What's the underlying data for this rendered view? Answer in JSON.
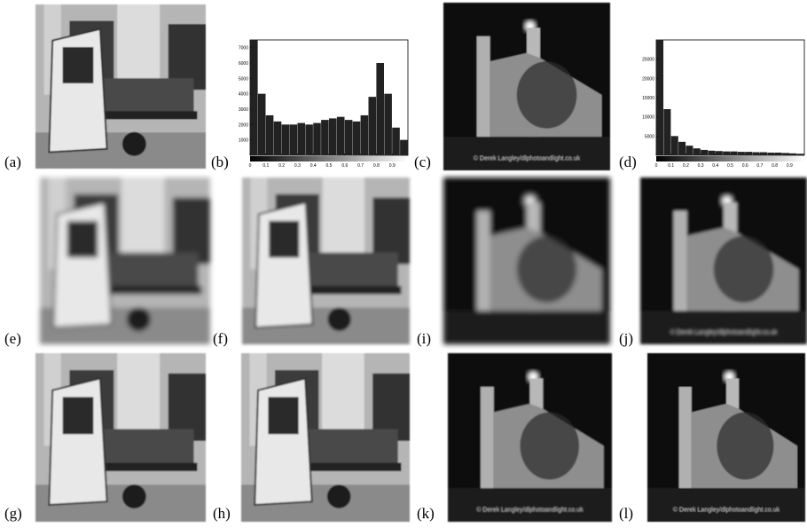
{
  "panels": [
    {
      "label": "(a)"
    },
    {
      "label": "(b)"
    },
    {
      "label": "(c)"
    },
    {
      "label": "(d)"
    },
    {
      "label": "(e)"
    },
    {
      "label": "(f)"
    },
    {
      "label": "(i)"
    },
    {
      "label": "(j)"
    },
    {
      "label": "(g)"
    },
    {
      "label": "(h)"
    },
    {
      "label": "(k)"
    },
    {
      "label": "(l)"
    }
  ],
  "watermark": "© Derek Langley/dlphotoandlight.co.uk",
  "chart_data": [
    {
      "type": "histogram",
      "bins": [
        0,
        0.05,
        0.1,
        0.15,
        0.2,
        0.25,
        0.3,
        0.35,
        0.4,
        0.45,
        0.5,
        0.55,
        0.6,
        0.65,
        0.7,
        0.75,
        0.8,
        0.85,
        0.9,
        0.95,
        1
      ],
      "counts": [
        7500,
        4000,
        2600,
        2200,
        2000,
        2000,
        2100,
        2000,
        2100,
        2300,
        2400,
        2500,
        2300,
        2200,
        2600,
        3800,
        6000,
        4000,
        1800,
        1000
      ],
      "color": "#222222",
      "xlim": [
        0,
        1
      ],
      "ylim": [
        0,
        7500
      ],
      "xticks": [
        0,
        0.1,
        0.2,
        0.3,
        0.4,
        0.5,
        0.6,
        0.7,
        0.8,
        0.9
      ],
      "yticks": [
        1000,
        2000,
        3000,
        4000,
        5000,
        6000,
        7000
      ]
    },
    {
      "type": "histogram",
      "bins": [
        0,
        0.05,
        0.1,
        0.15,
        0.2,
        0.25,
        0.3,
        0.35,
        0.4,
        0.45,
        0.5,
        0.55,
        0.6,
        0.65,
        0.7,
        0.75,
        0.8,
        0.85,
        0.9,
        0.95,
        1
      ],
      "counts": [
        30000,
        12000,
        5000,
        3500,
        2500,
        1800,
        1400,
        1200,
        1100,
        1000,
        1000,
        900,
        900,
        800,
        800,
        700,
        700,
        600,
        500,
        400
      ],
      "color": "#222222",
      "xlim": [
        0,
        1
      ],
      "ylim": [
        0,
        30000
      ],
      "xticks": [
        0,
        0.1,
        0.2,
        0.3,
        0.4,
        0.5,
        0.6,
        0.7,
        0.8,
        0.9
      ],
      "yticks": [
        5000,
        10000,
        15000,
        20000,
        25000
      ]
    }
  ]
}
